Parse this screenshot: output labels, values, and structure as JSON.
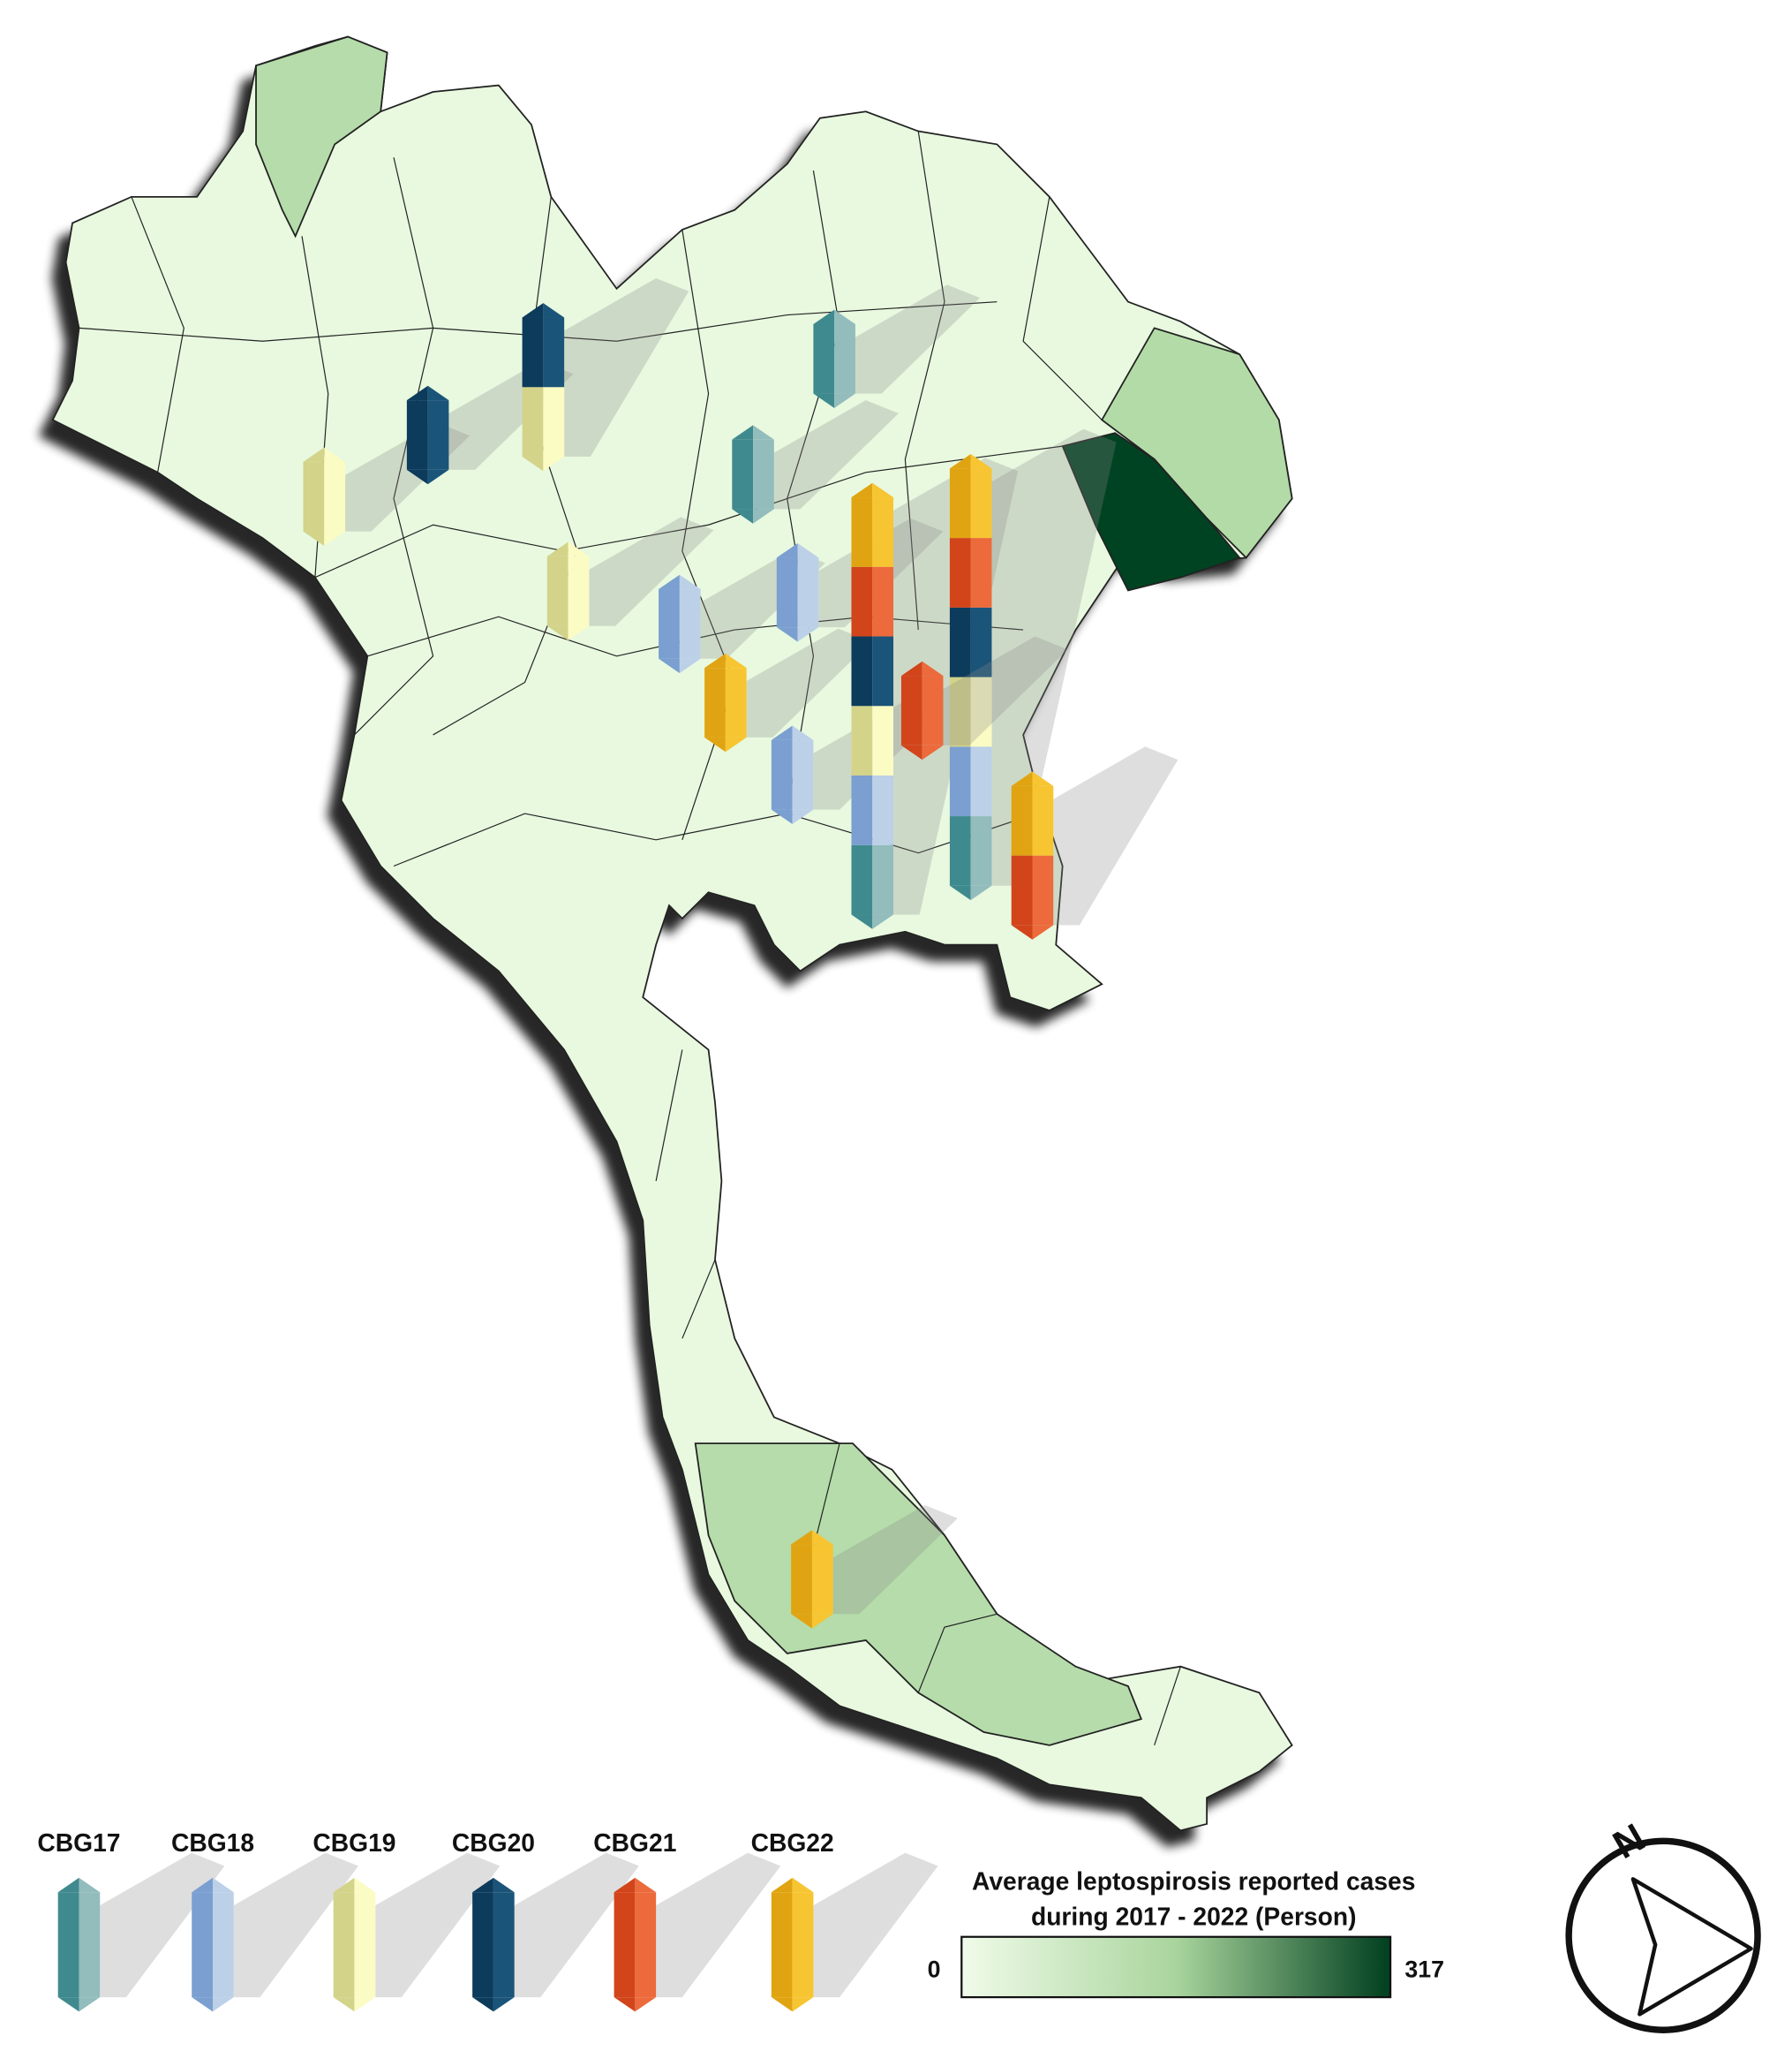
{
  "legend": {
    "items": [
      {
        "name": "CBG17",
        "color": "#3f8a8e",
        "highlight": "#93bcbc"
      },
      {
        "name": "CBG18",
        "color": "#7a9fd0",
        "highlight": "#bcd0e8"
      },
      {
        "name": "CBG19",
        "color": "#d3d38a",
        "highlight": "#fbfbc4"
      },
      {
        "name": "CBG20",
        "color": "#0c3b5c",
        "highlight": "#1b5479"
      },
      {
        "name": "CBG21",
        "color": "#d2441a",
        "highlight": "#ec6a3c"
      },
      {
        "name": "CBG22",
        "color": "#e0a412",
        "highlight": "#f7c531"
      }
    ]
  },
  "colorbar": {
    "title_lines": [
      "Average leptospirosis reported cases",
      "during 2017 - 2022 (Person)"
    ],
    "min": 0,
    "max": 317,
    "colors": [
      "#f0fbe9",
      "#a9d59d",
      "#003f1f"
    ]
  },
  "north_arrow": {
    "label": "N"
  }
}
